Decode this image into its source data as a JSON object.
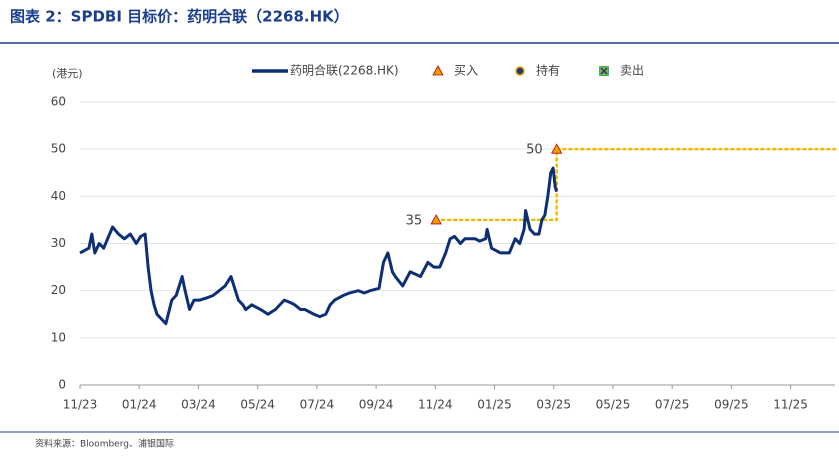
{
  "title": "图表 2：SPDBI 目标价：药明合联（2268.HK）",
  "source": "资料来源：Bloomberg、浦银国际",
  "chart_data": {
    "type": "line",
    "y_label": "(港元)",
    "xlim": [
      0,
      25.5
    ],
    "xticks": [
      {
        "value": 0,
        "label": "11/23"
      },
      {
        "value": 2,
        "label": "01/24"
      },
      {
        "value": 4,
        "label": "03/24"
      },
      {
        "value": 6,
        "label": "05/24"
      },
      {
        "value": 8,
        "label": "07/24"
      },
      {
        "value": 10,
        "label": "09/24"
      },
      {
        "value": 12,
        "label": "11/24"
      },
      {
        "value": 14,
        "label": "01/25"
      },
      {
        "value": 16,
        "label": "03/25"
      },
      {
        "value": 18,
        "label": "05/25"
      },
      {
        "value": 20,
        "label": "07/25"
      },
      {
        "value": 22,
        "label": "09/25"
      },
      {
        "value": 24,
        "label": "11/25"
      }
    ],
    "ylim": [
      0,
      60
    ],
    "yticks": [
      0,
      10,
      20,
      30,
      40,
      50,
      60
    ],
    "grid": true,
    "series": [
      {
        "name": "药明合联(2268.HK)",
        "color": "#0d2f75",
        "marker": "line",
        "x": [
          0,
          0.15,
          0.3,
          0.4,
          0.5,
          0.65,
          0.8,
          1.1,
          1.3,
          1.5,
          1.7,
          1.9,
          2.05,
          2.2,
          2.3,
          2.4,
          2.5,
          2.6,
          2.75,
          2.9,
          3.1,
          3.25,
          3.45,
          3.55,
          3.7,
          3.85,
          4.05,
          4.3,
          4.5,
          4.7,
          4.9,
          5.1,
          5.35,
          5.5,
          5.6,
          5.8,
          6.1,
          6.35,
          6.6,
          6.9,
          7.1,
          7.25,
          7.45,
          7.6,
          7.9,
          8.1,
          8.3,
          8.45,
          8.6,
          8.9,
          9.1,
          9.4,
          9.6,
          9.8,
          10.1,
          10.25,
          10.4,
          10.55,
          10.65,
          10.9,
          11.15,
          11.5,
          11.75,
          11.95,
          12.15,
          12.35,
          12.5,
          12.65,
          12.85,
          13.0,
          13.35,
          13.5,
          13.7,
          13.75,
          13.9,
          14.2,
          14.5,
          14.7,
          14.85,
          15.0,
          15.05,
          15.2,
          15.35,
          15.5,
          15.6,
          15.7,
          15.8,
          15.9,
          15.98,
          16.05,
          16.1
        ],
        "values": [
          28,
          28.5,
          29,
          32,
          28,
          30,
          29,
          33.5,
          32,
          31,
          32,
          30,
          31.5,
          32,
          25,
          20,
          17,
          15,
          14,
          13,
          18,
          19,
          23,
          20,
          16,
          18,
          18,
          18.5,
          19,
          20,
          21,
          23,
          18,
          17,
          16,
          17,
          16,
          15,
          16,
          18,
          17.5,
          17,
          16,
          16,
          15,
          14.5,
          15,
          17,
          18,
          19,
          19.5,
          20,
          19.5,
          20,
          20.5,
          26,
          28,
          24,
          23,
          21,
          24,
          23,
          26,
          25,
          25,
          28,
          31,
          31.5,
          30,
          31,
          31,
          30.5,
          31,
          33,
          29,
          28,
          28,
          31,
          30,
          33,
          37,
          33,
          32,
          32,
          35,
          36,
          40,
          45,
          46,
          42,
          41
        ]
      },
      {
        "name": "买入",
        "color": "#e8a000",
        "marker": "triangle",
        "x": [
          12.03,
          16.1
        ],
        "values": [
          35,
          50
        ]
      },
      {
        "name": "持有",
        "color": "#1f3a7a",
        "marker": "circle",
        "x": [],
        "values": []
      },
      {
        "name": "卖出",
        "color": "#7cb342",
        "marker": "square-x",
        "x": [],
        "values": []
      }
    ],
    "target_line": {
      "color": "#f5b800",
      "x": [
        12.03,
        16.1,
        16.1,
        25.5
      ],
      "values": [
        35,
        35,
        50,
        50
      ]
    }
  }
}
